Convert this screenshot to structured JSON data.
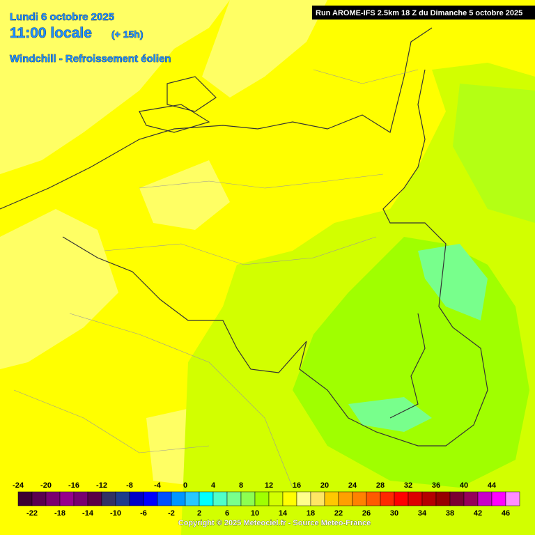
{
  "header": {
    "date": "Lundi 6 octobre 2025",
    "time": "11:00 locale",
    "lead": "(+ 15h)",
    "parameter": "Windchill - Refroissement éolien",
    "run": "Run AROME-IFS 2.5km 18 Z du Dimanche 5 octobre 2025"
  },
  "legend": {
    "values": [
      -24,
      -22,
      -20,
      -18,
      -16,
      -14,
      -12,
      -10,
      -8,
      -6,
      -4,
      -2,
      0,
      2,
      4,
      6,
      8,
      10,
      12,
      14,
      16,
      18,
      20,
      22,
      24,
      26,
      28,
      30,
      32,
      34,
      36,
      38,
      40,
      42,
      44,
      46
    ],
    "colors": [
      "#3c0032",
      "#5a0050",
      "#7a0070",
      "#96008c",
      "#780070",
      "#5a0046",
      "#323264",
      "#1e3c8c",
      "#0000c8",
      "#0000ff",
      "#0050ff",
      "#0096ff",
      "#28c8ff",
      "#00ffff",
      "#50ffc8",
      "#78ff8c",
      "#8cff50",
      "#a0ff00",
      "#d2ff00",
      "#ffff00",
      "#ffff8c",
      "#ffe664",
      "#ffc800",
      "#ffa000",
      "#ff8200",
      "#ff5a00",
      "#ff2800",
      "#ff0000",
      "#dc0000",
      "#b40000",
      "#960000",
      "#7a0032",
      "#96005a",
      "#c800c8",
      "#ff00ff",
      "#ff8cff"
    ]
  },
  "footer": {
    "copyright": "Copyright © 2025 Meteociel.fr - Source Meteo-France"
  }
}
